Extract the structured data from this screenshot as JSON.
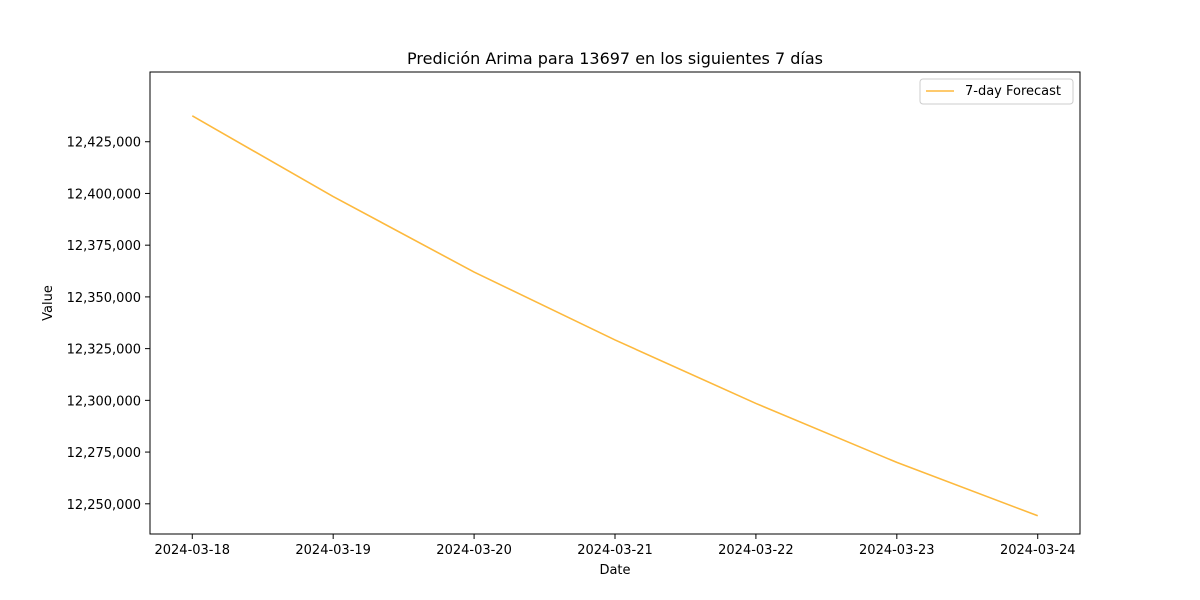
{
  "chart_data": {
    "type": "line",
    "title": "Predición Arima para 13697 en los siguientes 7 días",
    "xlabel": "Date",
    "ylabel": "Value",
    "x": [
      "2024-03-18",
      "2024-03-19",
      "2024-03-20",
      "2024-03-21",
      "2024-03-22",
      "2024-03-23",
      "2024-03-24"
    ],
    "series": [
      {
        "name": "7-day Forecast",
        "color": "#fdb93d",
        "values": [
          12437500,
          12398500,
          12362000,
          12329200,
          12298500,
          12270000,
          12244200
        ]
      }
    ],
    "xticks": [
      "2024-03-18",
      "2024-03-19",
      "2024-03-20",
      "2024-03-21",
      "2024-03-22",
      "2024-03-23",
      "2024-03-24"
    ],
    "yticks": [
      12250000,
      12275000,
      12300000,
      12325000,
      12350000,
      12375000,
      12400000,
      12425000
    ],
    "ytick_labels": [
      "12,250,000",
      "12,275,000",
      "12,300,000",
      "12,325,000",
      "12,350,000",
      "12,375,000",
      "12,400,000",
      "12,425,000"
    ],
    "xlim": [
      "2024-03-17.7",
      "2024-03-24.3"
    ],
    "ylim": [
      12235400,
      12458700
    ],
    "grid": false,
    "legend_position": "upper-right"
  }
}
